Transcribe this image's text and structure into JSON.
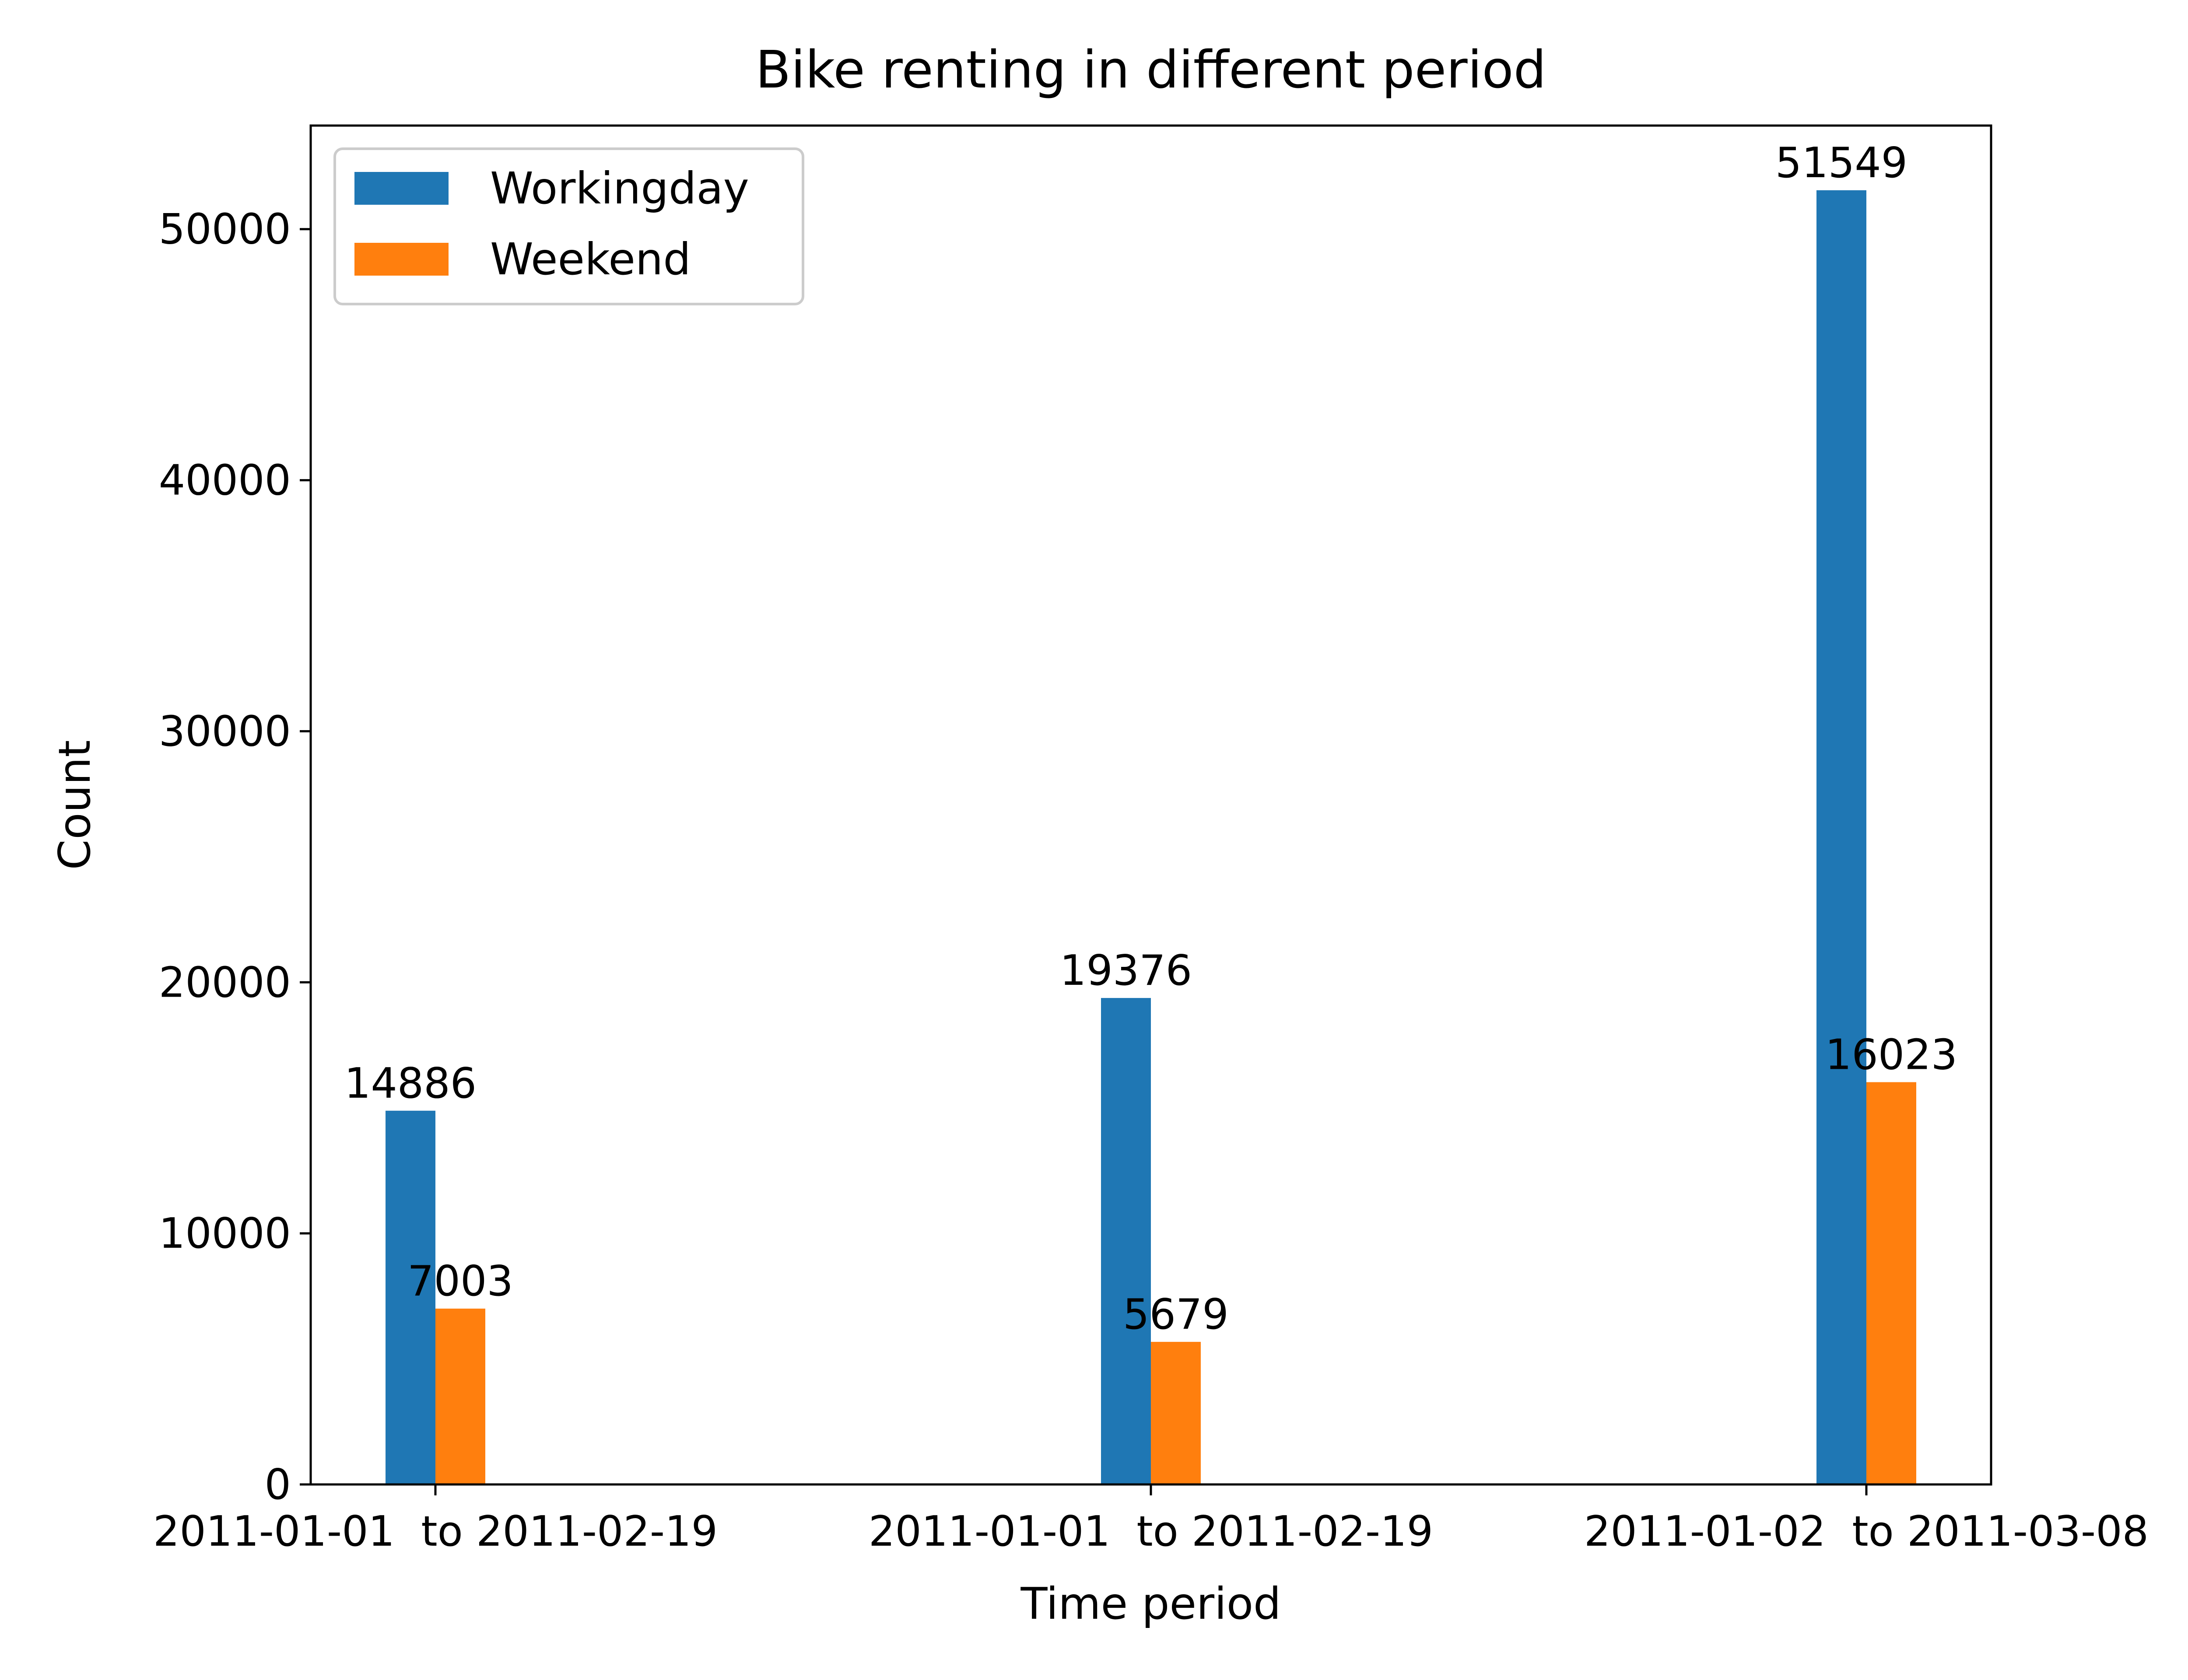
{
  "chart_data": {
    "type": "bar",
    "title": "Bike renting in different period",
    "xlabel": "Time period",
    "ylabel": "Count",
    "categories": [
      "2011-01-01  to 2011-02-19",
      "2011-01-01  to 2011-02-19",
      "2011-01-02  to 2011-03-08"
    ],
    "series": [
      {
        "name": "Workingday",
        "color": "#1f77b4",
        "values": [
          14886,
          19376,
          51549
        ]
      },
      {
        "name": "Weekend",
        "color": "#ff7f0e",
        "values": [
          7003,
          5679,
          16023
        ]
      }
    ],
    "ylim": [
      0,
      54125
    ],
    "yticks": [
      0,
      10000,
      20000,
      30000,
      40000,
      50000
    ],
    "legend_position": "top-left",
    "grid": false
  }
}
